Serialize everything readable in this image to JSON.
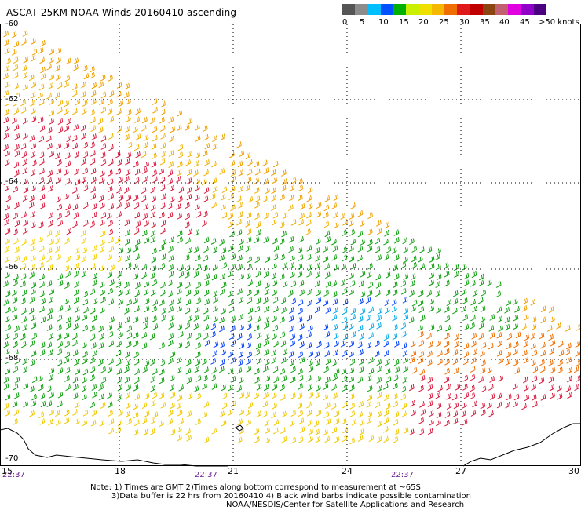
{
  "title": "ASCAT 25KM NOAA Winds 20160410 ascending",
  "legend": {
    "colors": [
      "#555555",
      "#8c8c8c",
      "#00bfff",
      "#0050ff",
      "#00b000",
      "#c8f000",
      "#f0e000",
      "#f5b800",
      "#f06e00",
      "#e01a1a",
      "#c00000",
      "#8b4513",
      "#c06070",
      "#e000e0",
      "#9000c8",
      "#4b0082"
    ],
    "ticks": [
      "0",
      "5",
      "10",
      "15",
      "20",
      "25",
      "30",
      "35",
      "40",
      "45",
      ">50 knots"
    ]
  },
  "map": {
    "lat_labels": [
      "-60",
      "-62",
      "-64",
      "-66",
      "-68",
      "-70"
    ],
    "lon_labels": [
      "15",
      "18",
      "21",
      "24",
      "27",
      "30"
    ],
    "time_labels": [
      "22:37",
      "22:37",
      "22:37"
    ]
  },
  "notes": {
    "line1": "Note: 1) Times are GMT 2)Times along bottom correspond to measurement at ~65S",
    "line2": "3)Data buffer is 22 hrs from 20160410 4) Black wind barbs indicate possible contamination",
    "line3": "NOAA/NESDIS/Center for Satellite Applications and Research"
  }
}
